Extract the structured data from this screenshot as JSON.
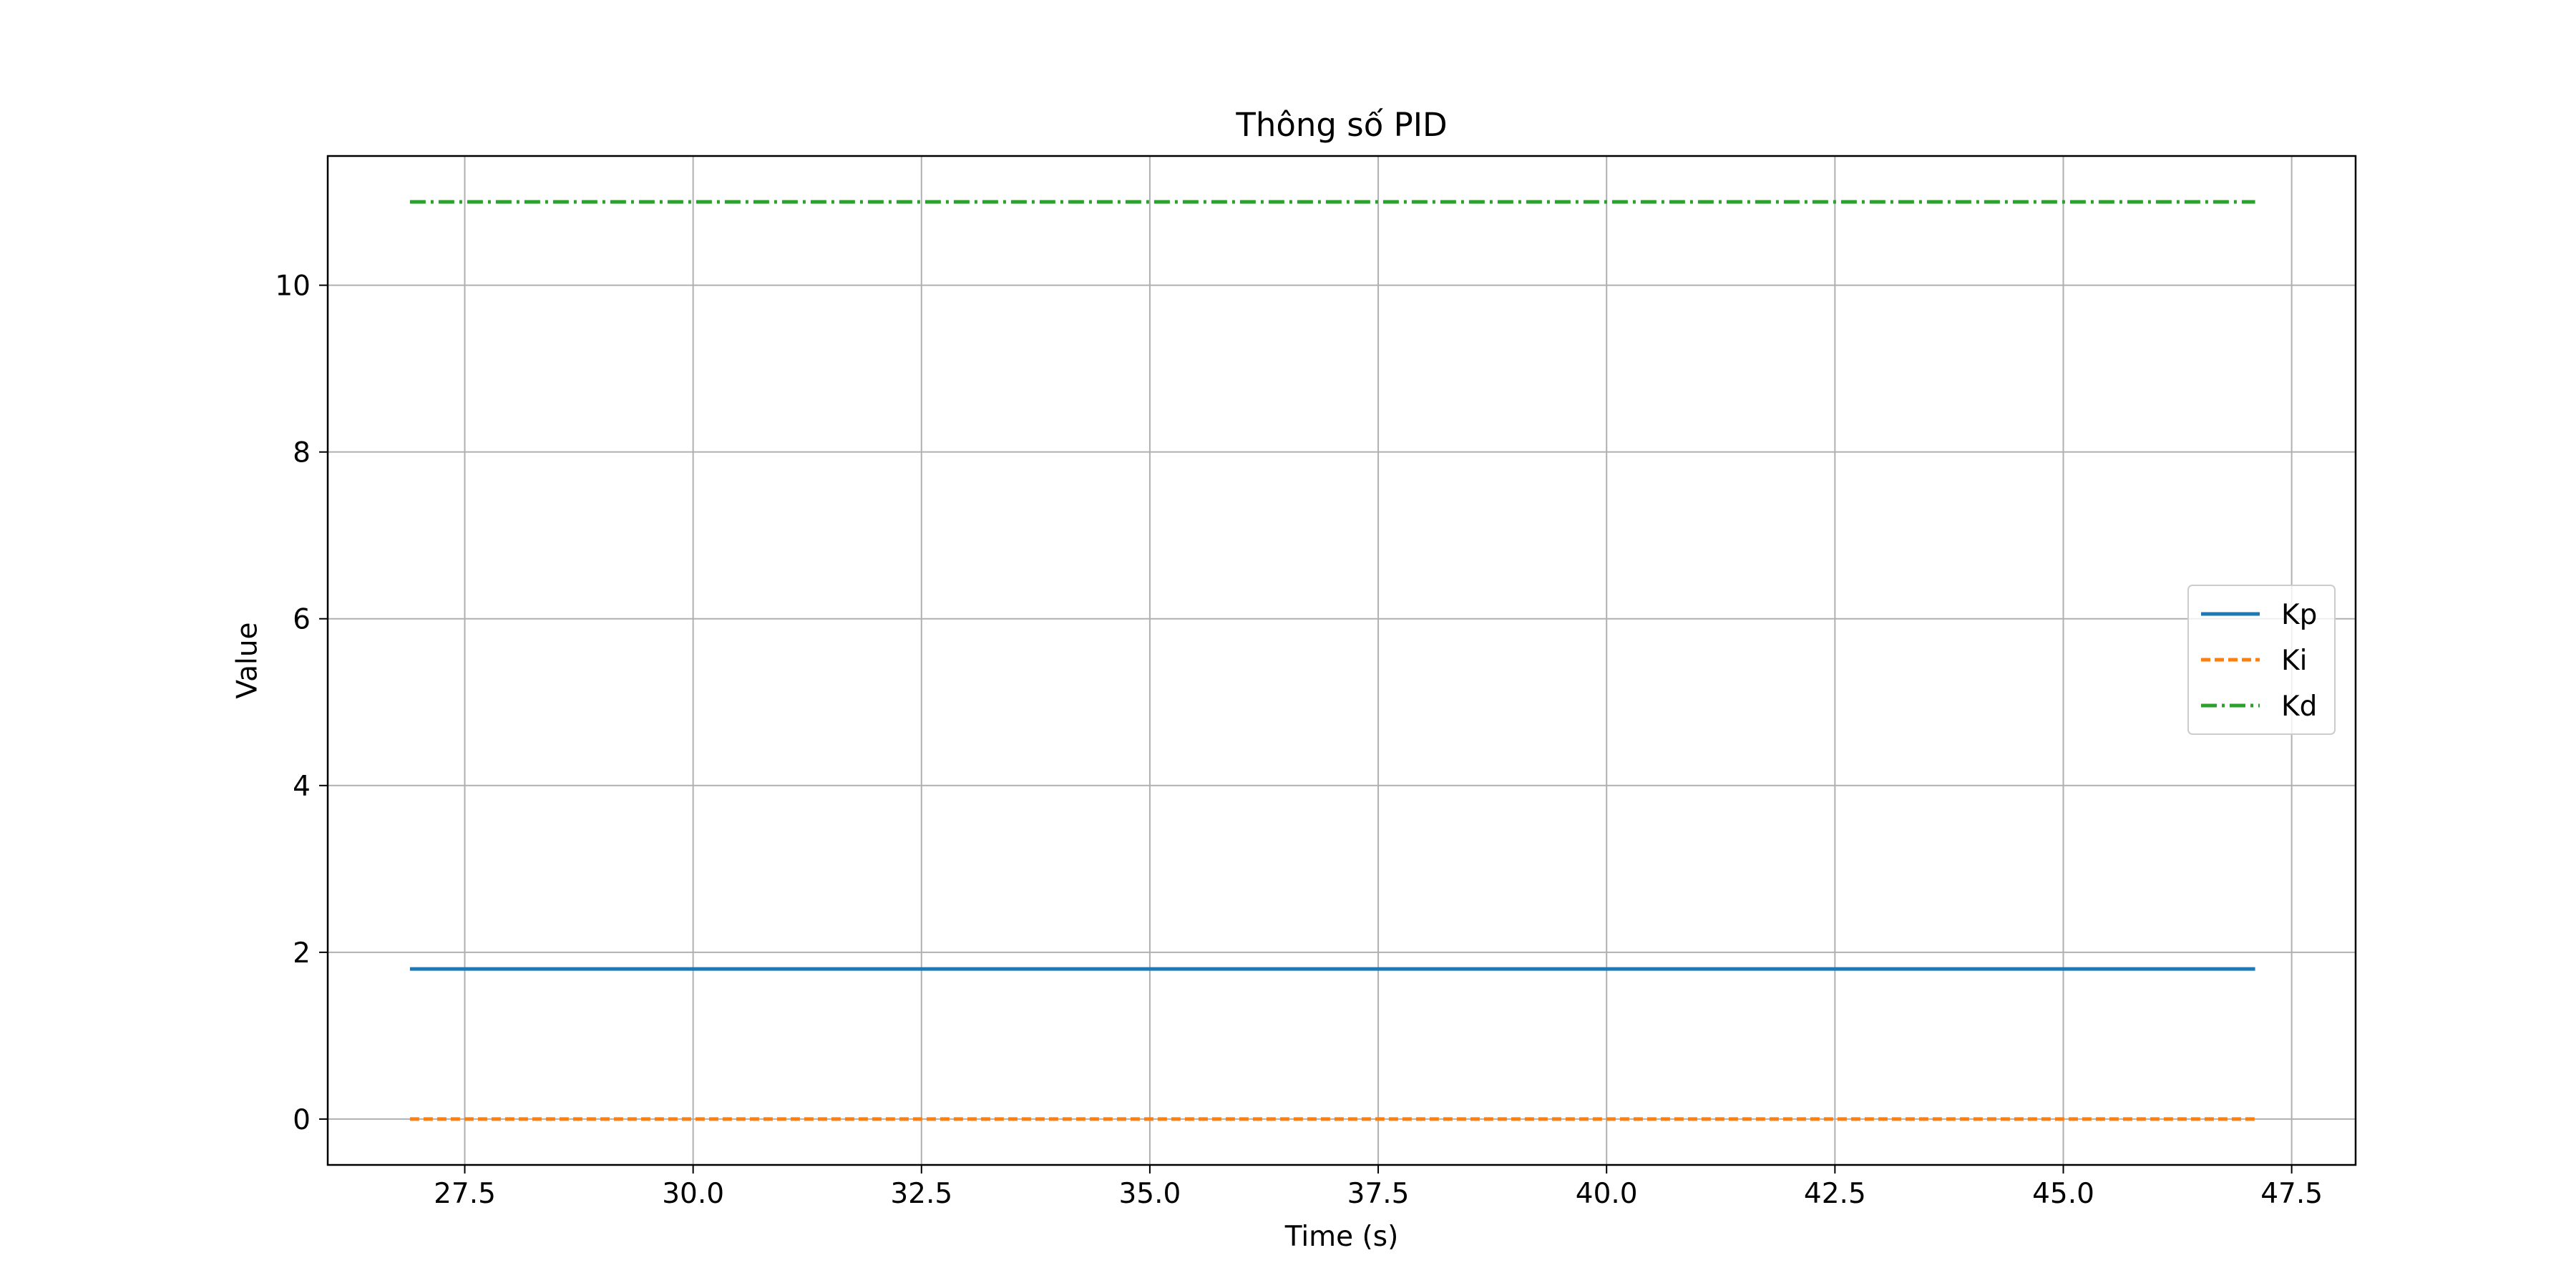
{
  "chart_data": {
    "type": "line",
    "title": "Thông số PID",
    "xlabel": "Time (s)",
    "ylabel": "Value",
    "xlim": [
      26.0,
      48.2
    ],
    "ylim": [
      -0.55,
      11.55
    ],
    "xticks": [
      27.5,
      30.0,
      32.5,
      35.0,
      37.5,
      40.0,
      42.5,
      45.0,
      47.5
    ],
    "xtick_labels": [
      "27.5",
      "30.0",
      "32.5",
      "35.0",
      "37.5",
      "40.0",
      "42.5",
      "45.0",
      "47.5"
    ],
    "yticks": [
      0,
      2,
      4,
      6,
      8,
      10
    ],
    "ytick_labels": [
      "0",
      "2",
      "4",
      "6",
      "8",
      "10"
    ],
    "grid": true,
    "legend_position": "center-right",
    "series": [
      {
        "name": "Kp",
        "color": "#1f77b4",
        "style": "solid",
        "x": [
          26.9,
          47.1
        ],
        "y": [
          1.8,
          1.8
        ]
      },
      {
        "name": "Ki",
        "color": "#ff7f0e",
        "style": "dashed",
        "x": [
          26.9,
          47.1
        ],
        "y": [
          0.0,
          0.0
        ]
      },
      {
        "name": "Kd",
        "color": "#2ca02c",
        "style": "dashdot",
        "x": [
          26.9,
          47.1
        ],
        "y": [
          11.0,
          11.0
        ]
      }
    ]
  }
}
